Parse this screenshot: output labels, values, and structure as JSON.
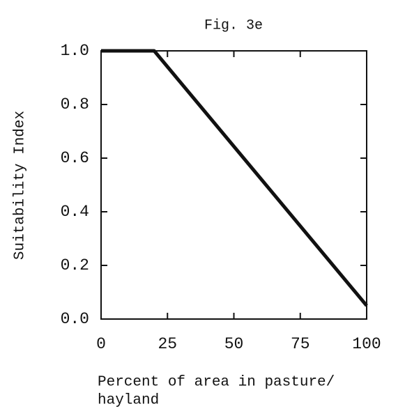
{
  "chart_data": {
    "type": "line",
    "title": "Fig. 3e",
    "xlabel": [
      "Percent of area in pasture/",
      "hayland"
    ],
    "ylabel": "Suitability Index",
    "x": [
      0,
      20,
      100
    ],
    "values": [
      1.0,
      1.0,
      0.05
    ],
    "color": "#111111",
    "xlim": [
      0,
      100
    ],
    "xticks": [
      0,
      25,
      50,
      75,
      100
    ],
    "ylim": [
      0,
      1
    ],
    "yticks": [
      {
        "value": 0,
        "label": "0.0"
      },
      0.2,
      0.4,
      0.6,
      0.8,
      {
        "value": 1,
        "label": "1.0"
      }
    ]
  }
}
